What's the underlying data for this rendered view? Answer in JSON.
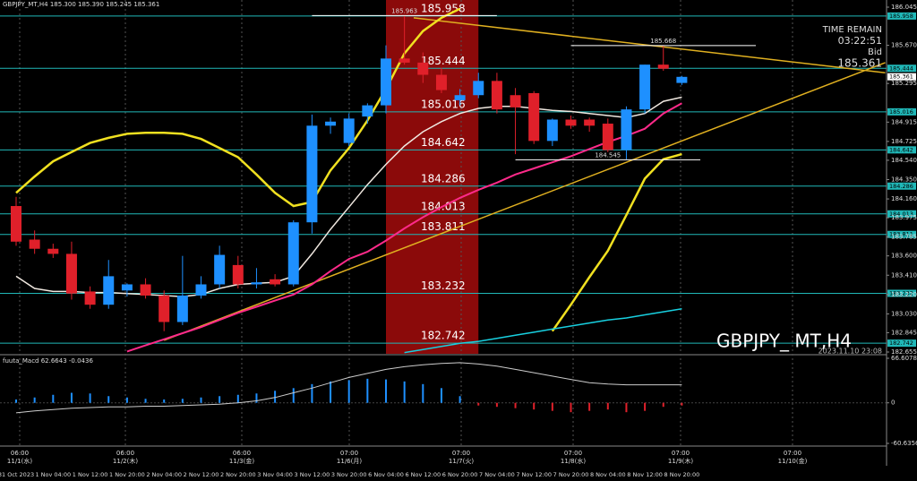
{
  "chart_data": {
    "type": "candlestick",
    "header": "GBPJPY_MT,H4 185.300 185.390 185.245 185.361",
    "symbol_title": "GBPJPY_ MT,H4",
    "timestamp": "2023.11.10 23:08",
    "time_remain": {
      "label": "TIME REMAIN",
      "value": "03:22:51"
    },
    "bid": {
      "label": "Bid",
      "value": 185.361
    },
    "open": [
      184.09,
      183.76,
      183.67,
      183.62,
      183.25,
      183.12,
      183.26,
      183.32,
      183.21,
      182.95,
      183.21,
      183.32,
      183.51,
      183.32,
      183.37,
      183.32,
      183.93,
      184.88,
      184.71,
      184.97,
      185.08,
      185.54,
      185.5,
      185.38,
      185.13,
      185.18,
      185.32,
      185.18,
      185.2,
      184.73,
      184.94,
      184.94,
      184.9,
      184.64,
      185.04,
      185.48,
      185.3
    ],
    "high": [
      184.18,
      183.85,
      183.72,
      183.74,
      183.3,
      183.56,
      183.33,
      183.38,
      183.26,
      183.6,
      183.4,
      183.7,
      183.6,
      183.48,
      183.42,
      183.95,
      184.99,
      184.96,
      185.0,
      185.1,
      185.67,
      185.96,
      185.6,
      185.45,
      185.24,
      185.4,
      185.4,
      185.25,
      185.22,
      184.95,
      184.98,
      184.96,
      184.95,
      185.07,
      185.48,
      185.67,
      185.37
    ],
    "low": [
      183.7,
      183.62,
      183.58,
      183.17,
      183.08,
      183.08,
      183.2,
      183.18,
      182.86,
      182.92,
      183.18,
      183.28,
      183.28,
      183.28,
      183.3,
      183.3,
      183.82,
      184.8,
      184.68,
      184.9,
      185.0,
      185.48,
      185.3,
      185.2,
      185.08,
      185.15,
      185.0,
      184.6,
      184.7,
      184.68,
      184.85,
      184.82,
      184.62,
      184.55,
      185.0,
      185.42,
      185.28
    ],
    "close": [
      183.74,
      183.67,
      183.62,
      183.23,
      183.12,
      183.4,
      183.32,
      183.21,
      182.95,
      183.21,
      183.32,
      183.61,
      183.32,
      183.34,
      183.32,
      183.93,
      184.88,
      184.92,
      184.95,
      185.08,
      185.54,
      185.5,
      185.38,
      185.23,
      185.18,
      185.32,
      185.04,
      185.06,
      184.73,
      184.94,
      184.88,
      184.88,
      184.64,
      185.04,
      185.48,
      185.44,
      185.36
    ],
    "up_color": "#1e90ff",
    "down_color": "#e0202a",
    "series": [
      {
        "color": "#f0e020",
        "width": 2.5,
        "values": [
          184.22,
          184.38,
          184.53,
          184.62,
          184.71,
          184.76,
          184.8,
          184.81,
          184.81,
          184.8,
          184.75,
          184.66,
          184.57,
          184.4,
          184.22,
          184.09,
          184.13,
          184.44,
          184.66,
          184.93,
          185.24,
          185.59,
          185.81,
          185.94,
          186.03,
          null,
          null,
          null,
          null,
          182.86,
          183.12,
          183.39,
          183.65,
          184.0,
          184.36,
          184.55,
          184.6
        ]
      },
      {
        "color": "#f0e8e0",
        "width": 1.5,
        "values": [
          183.4,
          183.28,
          183.25,
          183.25,
          183.24,
          183.24,
          183.23,
          183.22,
          183.21,
          183.2,
          183.22,
          183.28,
          183.32,
          183.33,
          183.34,
          183.4,
          183.62,
          183.86,
          184.08,
          184.3,
          184.5,
          184.68,
          184.82,
          184.92,
          185.0,
          185.05,
          185.07,
          185.07,
          185.05,
          185.03,
          185.02,
          185.0,
          184.98,
          184.96,
          185.0,
          185.12,
          185.16
        ]
      },
      {
        "color": "#ff2a8a",
        "width": 2,
        "values": [
          null,
          null,
          null,
          null,
          null,
          null,
          182.66,
          182.72,
          182.78,
          182.84,
          182.9,
          182.97,
          183.04,
          183.1,
          183.16,
          183.22,
          183.32,
          183.45,
          183.57,
          183.64,
          183.75,
          183.87,
          183.98,
          184.08,
          184.17,
          184.25,
          184.32,
          184.4,
          184.46,
          184.52,
          184.58,
          184.65,
          184.72,
          184.78,
          184.85,
          185.0,
          185.1
        ]
      },
      {
        "color": "#18d0e0",
        "width": 1.5,
        "values": [
          null,
          null,
          null,
          null,
          null,
          null,
          null,
          null,
          null,
          null,
          null,
          null,
          null,
          null,
          null,
          null,
          null,
          null,
          null,
          null,
          null,
          182.65,
          182.68,
          182.71,
          182.74,
          182.76,
          182.79,
          182.82,
          182.85,
          182.88,
          182.91,
          182.94,
          182.97,
          182.99,
          183.02,
          183.05,
          183.08
        ]
      }
    ],
    "trendlines": [
      {
        "color": "#e0b020",
        "from": [
          8,
          182.77
        ],
        "to": [
          47,
          185.5
        ]
      },
      {
        "color": "#e0b020",
        "from": [
          21.5,
          185.94
        ],
        "to": [
          47,
          185.4
        ]
      }
    ],
    "highlight": {
      "color": "#8b0a0a",
      "from": 20,
      "to": 25
    },
    "levels": [
      185.958,
      185.444,
      185.016,
      184.642,
      184.286,
      184.013,
      183.811,
      183.232,
      182.742
    ],
    "level_color": "#20b8b8",
    "annotations": [
      {
        "value": 185.963,
        "from": 16,
        "to": 26
      },
      {
        "value": 185.668,
        "from": 30,
        "to": 40
      },
      {
        "value": 184.545,
        "from": 27,
        "to": 37
      }
    ],
    "ylim": [
      182.655,
      186.045
    ],
    "yticks": [
      186.045,
      {
        "value": 185.67,
        "label": "185.670"
      },
      185.295,
      184.915,
      184.725,
      {
        "value": 184.54,
        "label": "184.540"
      },
      {
        "value": 184.35,
        "label": "184.350"
      },
      {
        "value": 184.16,
        "label": "184.160"
      },
      183.975,
      183.785,
      {
        "value": 183.6,
        "label": "183.600"
      },
      {
        "value": 183.41,
        "label": "183.410"
      },
      {
        "value": 183.22,
        "label": "183.220"
      },
      {
        "value": 183.03,
        "label": "183.030"
      },
      182.845,
      182.655
    ],
    "macd": {
      "title": "fuuta_Macd 62.6643 -0.0436",
      "histogram": [
        5,
        8,
        12,
        15,
        14,
        10,
        8,
        6,
        5,
        6,
        8,
        10,
        12,
        14,
        18,
        22,
        28,
        32,
        34,
        36,
        35,
        32,
        28,
        22,
        10,
        -4,
        -6,
        -8,
        -10,
        -12,
        -14,
        -12,
        -10,
        -14,
        -12,
        -6,
        -4
      ],
      "signal": [
        -15,
        -12,
        -10,
        -8,
        -7,
        -6,
        -6,
        -5,
        -5,
        -4,
        -3,
        -2,
        0,
        3,
        8,
        15,
        22,
        30,
        38,
        44,
        50,
        54,
        57,
        59,
        60,
        58,
        55,
        50,
        45,
        40,
        35,
        30,
        28,
        27,
        27,
        27,
        27
      ],
      "ylim": [
        -60.6356,
        66.6078
      ],
      "yticks": [
        66.6078,
        0,
        -60.6356
      ]
    },
    "time_labels": [
      "31 Oct 2023",
      "1 Nov 04:00",
      "1 Nov 12:00",
      "1 Nov 20:00",
      "2 Nov 04:00",
      "2 Nov 12:00",
      "2 Nov 20:00",
      "3 Nov 04:00",
      "3 Nov 12:00",
      "3 Nov 20:00",
      "6 Nov 04:00",
      "6 Nov 12:00",
      "6 Nov 20:00",
      "7 Nov 04:00",
      "7 Nov 12:00",
      "7 Nov 20:00",
      "8 Nov 04:00",
      "8 Nov 12:00",
      "8 Nov 20:00"
    ],
    "sessions": [
      {
        "time": "06:00",
        "date": "11/1(水)"
      },
      {
        "time": "06:00",
        "date": "11/2(木)"
      },
      {
        "time": "06:00",
        "date": "11/3(金)"
      },
      {
        "time": "07:00",
        "date": "11/6(月)"
      },
      {
        "time": "07:00",
        "date": "11/7(火)"
      },
      {
        "time": "07:00",
        "date": "11/8(水)"
      },
      {
        "time": "07:00",
        "date": "11/9(木)"
      },
      {
        "time": "07:00",
        "date": "11/10(金)"
      }
    ]
  }
}
